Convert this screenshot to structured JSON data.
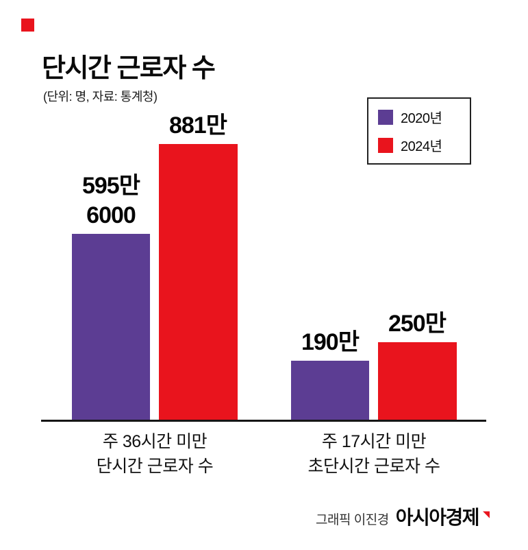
{
  "colors": {
    "accent": "#e9141d",
    "purple_2020": "#5c3d93",
    "red_2024": "#e9141d",
    "text": "#111111",
    "background": "#ffffff"
  },
  "icons": {
    "brand_flag": "◥"
  },
  "footer": {
    "credit": "그래픽 이진경",
    "brand": "아시아경제"
  },
  "chart_data": {
    "type": "bar",
    "title": "단시간 근로자 수",
    "subtitle": "(단위: 명, 자료: 통계청)",
    "unit": "명",
    "value_scale_note": "values in 만 (10,000 persons)",
    "categories": [
      "주 36시간 미만\n단시간 근로자 수",
      "주 17시간 미만\n초단시간 근로자 수"
    ],
    "series": [
      {
        "name": "2020년",
        "color": "#5c3d93",
        "values": [
          595.6,
          190
        ],
        "value_labels": [
          "595만\n6000",
          "190만"
        ]
      },
      {
        "name": "2024년",
        "color": "#e9141d",
        "values": [
          881,
          250
        ],
        "value_labels": [
          "881만",
          "250만"
        ]
      }
    ],
    "ylim": [
      0,
      881
    ],
    "grid": false,
    "legend_position": "top-right"
  }
}
